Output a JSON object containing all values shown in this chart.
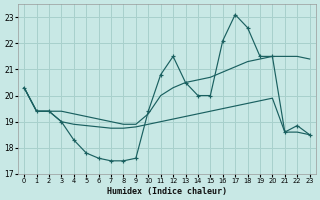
{
  "xlabel": "Humidex (Indice chaleur)",
  "bg_color": "#c8e8e5",
  "grid_color": "#a8d0cc",
  "line_color": "#1a6060",
  "xlim": [
    -0.5,
    23.5
  ],
  "ylim": [
    17,
    23.5
  ],
  "xticks": [
    0,
    1,
    2,
    3,
    4,
    5,
    6,
    7,
    8,
    9,
    10,
    11,
    12,
    13,
    14,
    15,
    16,
    17,
    18,
    19,
    20,
    21,
    22,
    23
  ],
  "yticks": [
    17,
    18,
    19,
    20,
    21,
    22,
    23
  ],
  "series1_y": [
    20.3,
    19.4,
    19.4,
    19.0,
    18.3,
    17.8,
    17.6,
    17.5,
    17.5,
    17.6,
    19.4,
    20.8,
    21.5,
    20.5,
    20.0,
    20.0,
    22.1,
    23.1,
    22.6,
    21.5,
    21.5,
    18.6,
    18.85,
    18.5
  ],
  "series2_y": [
    20.3,
    19.4,
    19.4,
    19.4,
    19.3,
    19.2,
    19.1,
    19.0,
    18.9,
    18.9,
    19.3,
    20.0,
    20.3,
    20.5,
    20.6,
    20.7,
    20.9,
    21.1,
    21.3,
    21.4,
    21.5,
    21.5,
    21.5,
    21.4
  ],
  "series3_y": [
    20.3,
    19.4,
    19.4,
    19.0,
    18.9,
    18.85,
    18.8,
    18.75,
    18.75,
    18.8,
    18.9,
    19.0,
    19.1,
    19.2,
    19.3,
    19.4,
    19.5,
    19.6,
    19.7,
    19.8,
    19.9,
    18.6,
    18.6,
    18.5
  ]
}
